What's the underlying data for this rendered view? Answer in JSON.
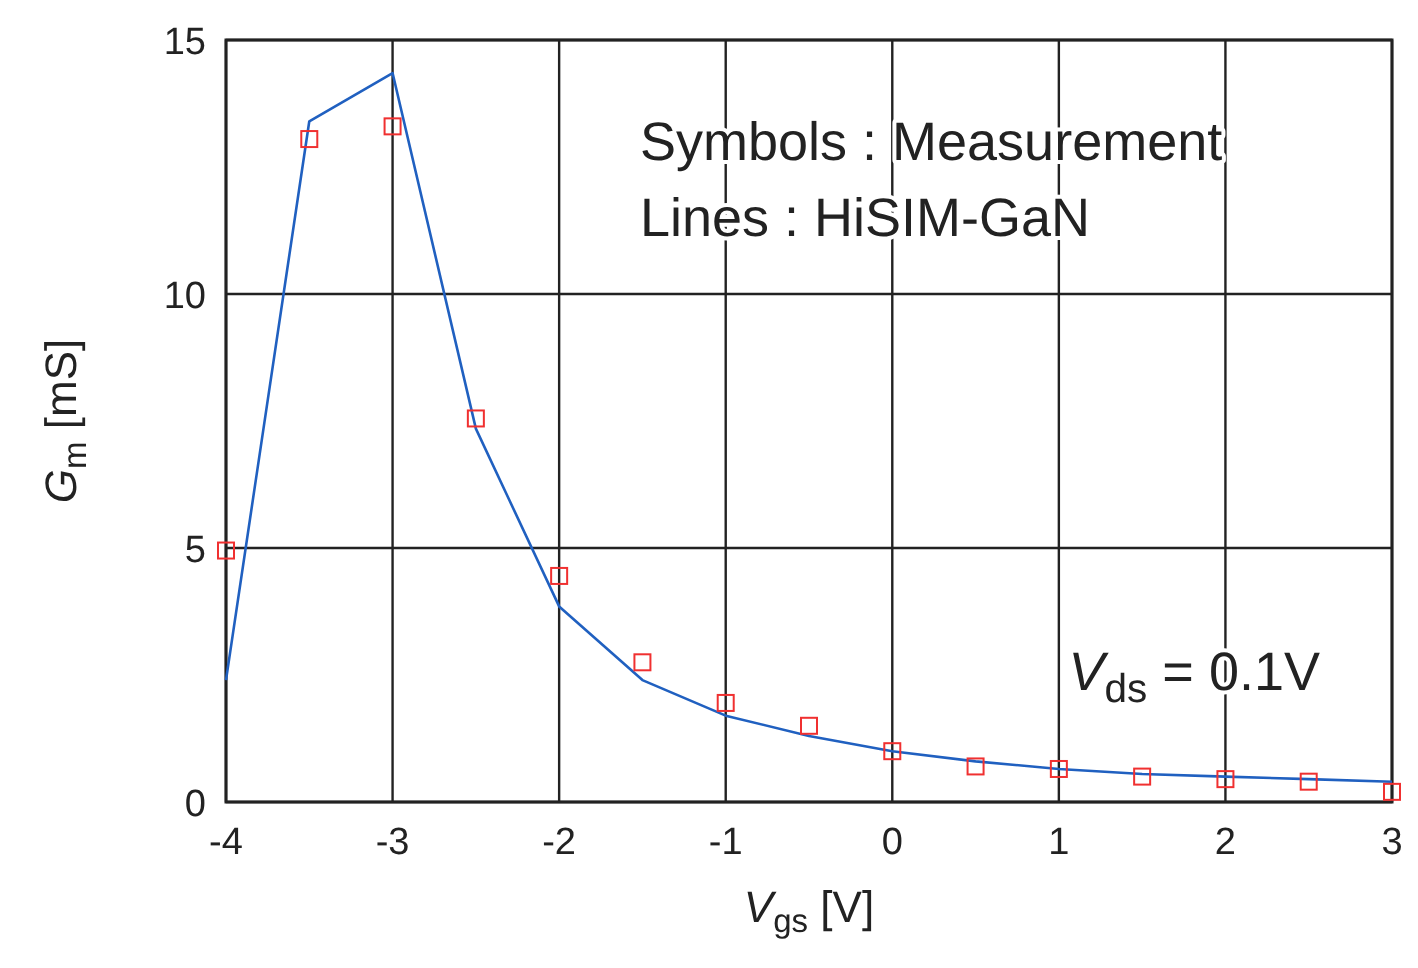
{
  "chart_data": {
    "type": "line",
    "xlabel": "V$_{gs}$ [V]",
    "ylabel": "G$_{m}$ [mS]",
    "x": [
      -4,
      -3.5,
      -3,
      -2.5,
      -2,
      -1.5,
      -1,
      -0.5,
      0,
      0.5,
      1,
      1.5,
      2,
      2.5,
      3
    ],
    "series": [
      {
        "color": "#2060c0",
        "marker": "none",
        "values": [
          2.4,
          13.4,
          14.35,
          7.35,
          3.85,
          2.4,
          1.7,
          1.3,
          1.0,
          0.8,
          0.65,
          0.55,
          0.5,
          0.45,
          0.4
        ]
      },
      {
        "type": "scatter",
        "color": "#f03030",
        "marker": "square",
        "values": [
          4.95,
          13.05,
          13.3,
          7.55,
          4.45,
          2.75,
          1.95,
          1.5,
          1.0,
          0.7,
          0.65,
          0.5,
          0.45,
          0.4,
          0.2
        ]
      }
    ],
    "xlim": [
      -4,
      3
    ],
    "xticks": [
      -4,
      -3,
      -2,
      -1,
      0,
      1,
      2,
      3
    ],
    "ylim": [
      0,
      15
    ],
    "yticks": [
      0,
      5,
      10,
      15
    ],
    "grid": true,
    "annotations": [
      "Symbols : Measurement",
      "Lines : HiSIM-GaN",
      "V$_{ds}$ = 0.1V"
    ]
  }
}
